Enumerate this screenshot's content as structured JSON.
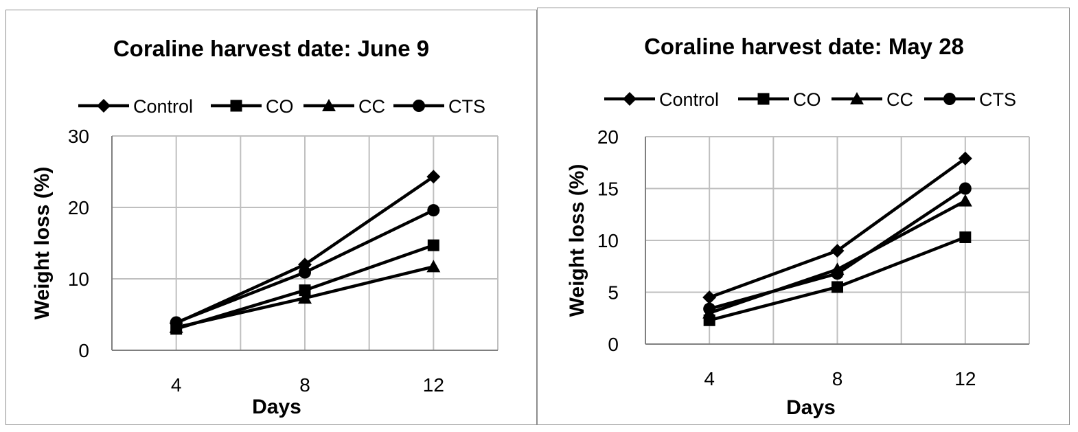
{
  "chart_data": [
    {
      "type": "line",
      "title": "Coraline harvest date: June 9",
      "xlabel": "Days",
      "ylabel": "Weight loss (%)",
      "x": [
        4,
        8,
        12
      ],
      "ylim": [
        0,
        30
      ],
      "yticks": [
        0,
        10,
        20,
        30
      ],
      "grid": true,
      "legend_position": "top",
      "series": [
        {
          "name": "Control",
          "marker": "diamond",
          "values": [
            3.8,
            12.0,
            24.3
          ]
        },
        {
          "name": "CO",
          "marker": "square",
          "values": [
            3.0,
            8.4,
            14.7
          ]
        },
        {
          "name": "CC",
          "marker": "triangle",
          "values": [
            3.2,
            7.3,
            11.7
          ]
        },
        {
          "name": "CTS",
          "marker": "circle",
          "values": [
            3.9,
            10.9,
            19.6
          ]
        }
      ]
    },
    {
      "type": "line",
      "title": "Coraline harvest date: May 28",
      "xlabel": "Days",
      "ylabel": "Weight loss (%)",
      "x": [
        4,
        8,
        12
      ],
      "ylim": [
        0,
        20
      ],
      "yticks": [
        0,
        5,
        10,
        15,
        20
      ],
      "grid": true,
      "legend_position": "top",
      "series": [
        {
          "name": "Control",
          "marker": "diamond",
          "values": [
            4.5,
            9.0,
            17.9
          ]
        },
        {
          "name": "CO",
          "marker": "square",
          "values": [
            2.3,
            5.5,
            10.3
          ]
        },
        {
          "name": "CC",
          "marker": "triangle",
          "values": [
            3.0,
            7.2,
            13.8
          ]
        },
        {
          "name": "CTS",
          "marker": "circle",
          "values": [
            3.4,
            6.8,
            15.0
          ]
        }
      ]
    }
  ],
  "colors": {
    "line": "#000000",
    "grid": "#bfbfbf",
    "axis": "#7f7f7f",
    "border": "#8c8c8c"
  }
}
